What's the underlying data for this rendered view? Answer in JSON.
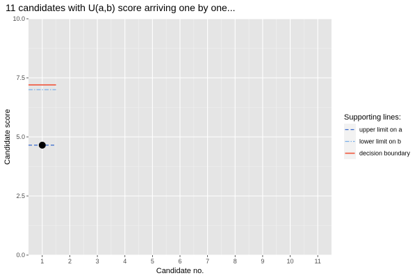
{
  "chart_data": {
    "type": "scatter",
    "title": "11 candidates with U(a,b) score arriving one by one...",
    "xlabel": "Candidate no.",
    "ylabel": "Candidate score",
    "xlim": [
      0.5,
      11.5
    ],
    "ylim": [
      0,
      10
    ],
    "x_ticks": [
      1,
      2,
      3,
      4,
      5,
      6,
      7,
      8,
      9,
      10,
      11
    ],
    "y_ticks": [
      0,
      2.5,
      5,
      7.5,
      10
    ],
    "y_tick_labels": [
      "0.0",
      "2.5",
      "5.0",
      "7.5",
      "10.0"
    ],
    "grid": true,
    "panel_background": "#e5e5e5",
    "points": [
      {
        "x": 1,
        "y": 4.65
      }
    ],
    "supporting_lines": [
      {
        "name": "upper limit on a",
        "x": [
          0.5,
          1.5
        ],
        "y": 4.65,
        "color": "#3366cc",
        "dash": "dashed"
      },
      {
        "name": "lower limit on b",
        "x": [
          0.5,
          1.5
        ],
        "y": 7.0,
        "color": "#7aaee8",
        "dash": "dotdash"
      },
      {
        "name": "decision boundary",
        "x": [
          0.5,
          1.5
        ],
        "y": 7.2,
        "color": "#f0553a",
        "dash": "solid"
      }
    ],
    "legend": {
      "title": "Supporting lines:",
      "placement": "right"
    }
  }
}
